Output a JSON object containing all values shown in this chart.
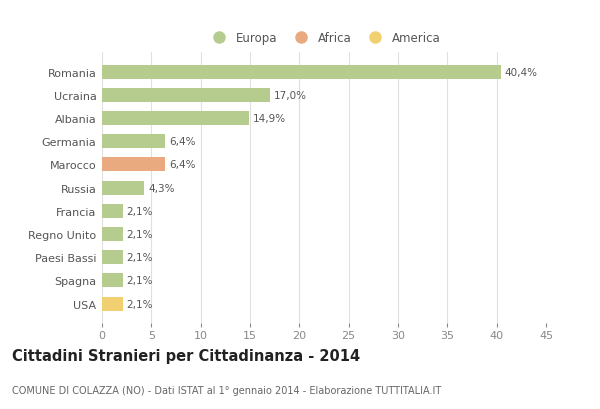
{
  "countries": [
    "Romania",
    "Ucraina",
    "Albania",
    "Germania",
    "Marocco",
    "Russia",
    "Francia",
    "Regno Unito",
    "Paesi Bassi",
    "Spagna",
    "USA"
  ],
  "values": [
    40.4,
    17.0,
    14.9,
    6.4,
    6.4,
    4.3,
    2.1,
    2.1,
    2.1,
    2.1,
    2.1
  ],
  "labels": [
    "40,4%",
    "17,0%",
    "14,9%",
    "6,4%",
    "6,4%",
    "4,3%",
    "2,1%",
    "2,1%",
    "2,1%",
    "2,1%",
    "2,1%"
  ],
  "colors": [
    "#b5cc8e",
    "#b5cc8e",
    "#b5cc8e",
    "#b5cc8e",
    "#e8aa7e",
    "#b5cc8e",
    "#b5cc8e",
    "#b5cc8e",
    "#b5cc8e",
    "#b5cc8e",
    "#f0d070"
  ],
  "legend_labels": [
    "Europa",
    "Africa",
    "America"
  ],
  "legend_colors": [
    "#b5cc8e",
    "#e8aa7e",
    "#f0d070"
  ],
  "title": "Cittadini Stranieri per Cittadinanza - 2014",
  "subtitle": "COMUNE DI COLAZZA (NO) - Dati ISTAT al 1° gennaio 2014 - Elaborazione TUTTITALIA.IT",
  "xlim": [
    0,
    45
  ],
  "xticks": [
    0,
    5,
    10,
    15,
    20,
    25,
    30,
    35,
    40,
    45
  ],
  "background_color": "#ffffff",
  "grid_color": "#e0e0e0",
  "bar_height": 0.6
}
